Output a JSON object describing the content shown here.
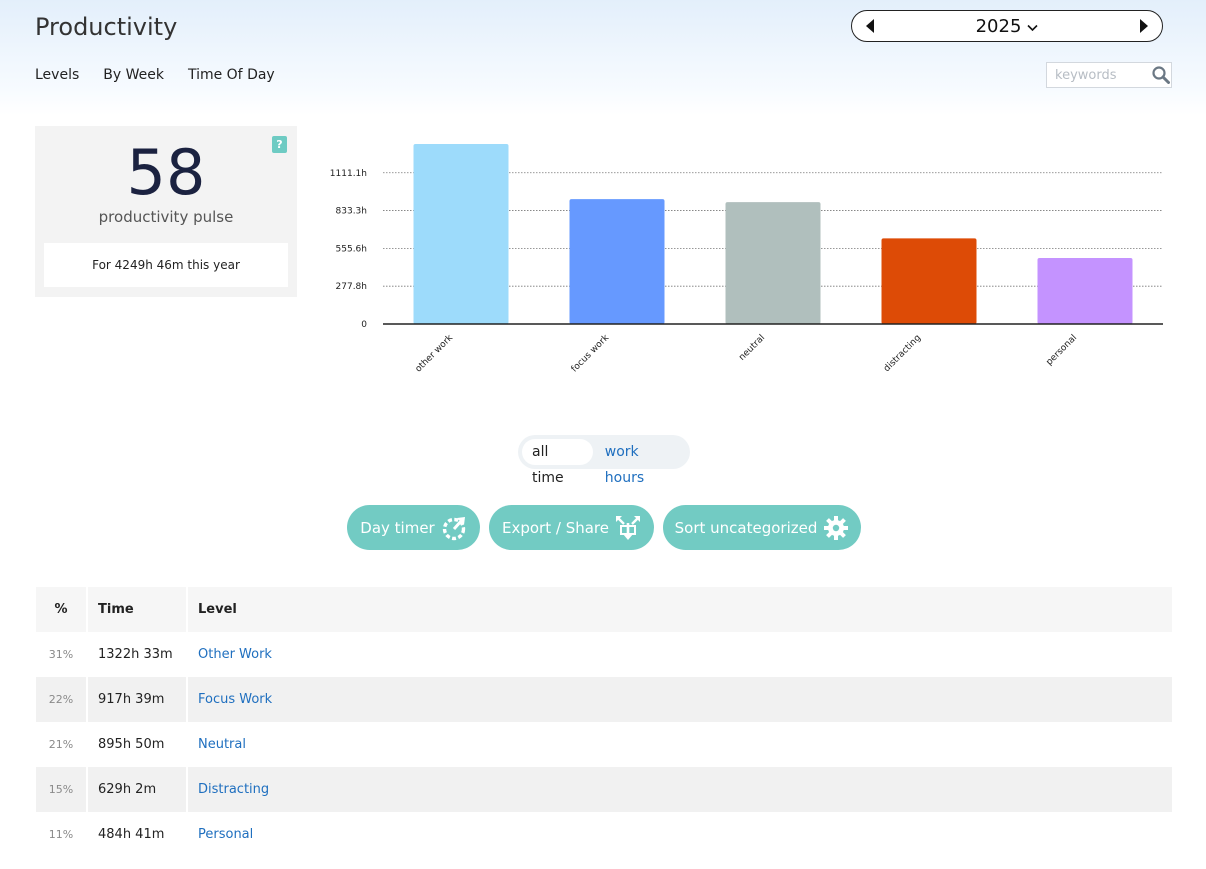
{
  "header": {
    "title": "Productivity",
    "tabs": [
      "Levels",
      "By Week",
      "Time Of Day"
    ],
    "year": "2025",
    "search_placeholder": "keywords"
  },
  "pulse": {
    "help": "?",
    "score": "58",
    "label": "productivity pulse",
    "total": "For 4249h 46m this year"
  },
  "chart_data": {
    "type": "bar",
    "categories": [
      "other work",
      "focus work",
      "neutral",
      "distracting",
      "personal"
    ],
    "values": [
      1322.55,
      917.65,
      895.83,
      629.03,
      484.68
    ],
    "colors": [
      "#9ddbfb",
      "#6699ff",
      "#b0bfbd",
      "#dd4b06",
      "#c493ff"
    ],
    "yticks": [
      0,
      277.8,
      555.6,
      833.3,
      1111.1
    ],
    "ytick_labels": [
      "0",
      "277.8h",
      "555.6h",
      "833.3h",
      "1111.1h"
    ],
    "ylim": [
      0,
      1322.55
    ],
    "grid": true
  },
  "toggle": {
    "all_time": "all time",
    "work_hours": "work hours"
  },
  "actions": {
    "day_timer": "Day timer",
    "export_share": "Export / Share",
    "sort_uncategorized": "Sort uncategorized"
  },
  "table": {
    "headers": {
      "pct": "%",
      "time": "Time",
      "level": "Level"
    },
    "rows": [
      {
        "pct": "31%",
        "time": "1322h 33m",
        "level": "Other Work"
      },
      {
        "pct": "22%",
        "time": "917h 39m",
        "level": "Focus Work"
      },
      {
        "pct": "21%",
        "time": "895h 50m",
        "level": "Neutral"
      },
      {
        "pct": "15%",
        "time": "629h 2m",
        "level": "Distracting"
      },
      {
        "pct": "11%",
        "time": "484h 41m",
        "level": "Personal"
      }
    ]
  },
  "icons": {
    "prev": "caret-left-icon",
    "next": "caret-right-icon",
    "dropdown": "chevron-down-icon",
    "search": "search-icon",
    "day_timer": "refresh-timer-icon",
    "export": "export-share-icon",
    "sort": "gear-icon"
  }
}
